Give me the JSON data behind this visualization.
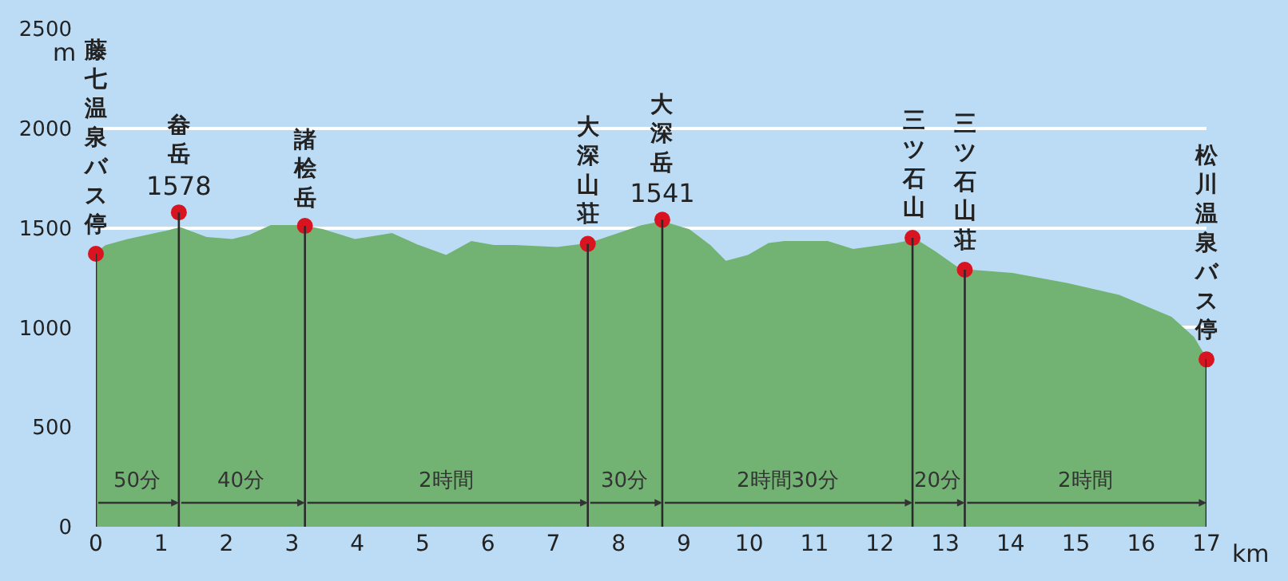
{
  "chart_data": {
    "type": "area",
    "xlabel": "km",
    "ylabel": "m",
    "xlim": [
      0,
      17
    ],
    "xticks": [
      0,
      1,
      2,
      3,
      4,
      5,
      6,
      7,
      8,
      9,
      10,
      11,
      12,
      13,
      14,
      15,
      16,
      17
    ],
    "ylim": [
      0,
      2500
    ],
    "yticks": [
      0,
      500,
      1000,
      1500,
      2000,
      2500
    ],
    "grid": "y",
    "series": [
      {
        "color": "#72b373",
        "x": [
          0,
          0.15,
          0.49,
          1.05,
          1.29,
          1.7,
          2.09,
          2.34,
          2.68,
          3.17,
          3.48,
          3.97,
          4.53,
          4.94,
          5.36,
          5.75,
          6.09,
          6.41,
          7.06,
          7.55,
          8.35,
          8.67,
          9.08,
          9.4,
          9.64,
          9.98,
          10.3,
          10.54,
          11.2,
          11.59,
          12.25,
          12.55,
          12.84,
          13.23,
          13.64,
          14.03,
          14.86,
          15.66,
          16.46,
          16.8,
          17.0
        ],
        "values": [
          1370,
          1410,
          1440,
          1480,
          1500,
          1450,
          1440,
          1460,
          1510,
          1510,
          1490,
          1440,
          1470,
          1410,
          1360,
          1430,
          1410,
          1410,
          1400,
          1420,
          1510,
          1530,
          1490,
          1410,
          1330,
          1360,
          1420,
          1430,
          1430,
          1390,
          1420,
          1440,
          1380,
          1290,
          1280,
          1270,
          1220,
          1160,
          1050,
          950,
          840
        ]
      },
      {
        "type": "lollipop",
        "color": "#d7141f",
        "marker": "circle",
        "x": [
          0,
          1.27,
          3.2,
          7.53,
          8.67,
          12.5,
          13.3,
          17.0
        ],
        "values": [
          1370,
          1578,
          1510,
          1420,
          1541,
          1450,
          1290,
          840
        ],
        "value_labels": [
          null,
          "1578",
          null,
          null,
          "1541",
          null,
          null,
          null
        ]
      }
    ],
    "annotations": [
      {
        "text": "藤七温泉バス停",
        "x": 0,
        "y": 1370
      },
      {
        "text": "畚岳",
        "x": 1.27,
        "y": 1578
      },
      {
        "text": "諸桧岳",
        "x": 3.2,
        "y": 1510
      },
      {
        "text": "大深山荘",
        "x": 7.53,
        "y": 1420
      },
      {
        "text": "大深岳",
        "x": 8.67,
        "y": 1541
      },
      {
        "text": "三ツ石山",
        "x": 12.5,
        "y": 1450
      },
      {
        "text": "三ツ石山荘",
        "x": 13.3,
        "y": 1290
      },
      {
        "text": "松川温泉バス停",
        "x": 17.0,
        "y": 840
      },
      "50分",
      "40分",
      "2時間",
      "30分",
      "2時間30分",
      "20分",
      "2時間"
    ]
  }
}
